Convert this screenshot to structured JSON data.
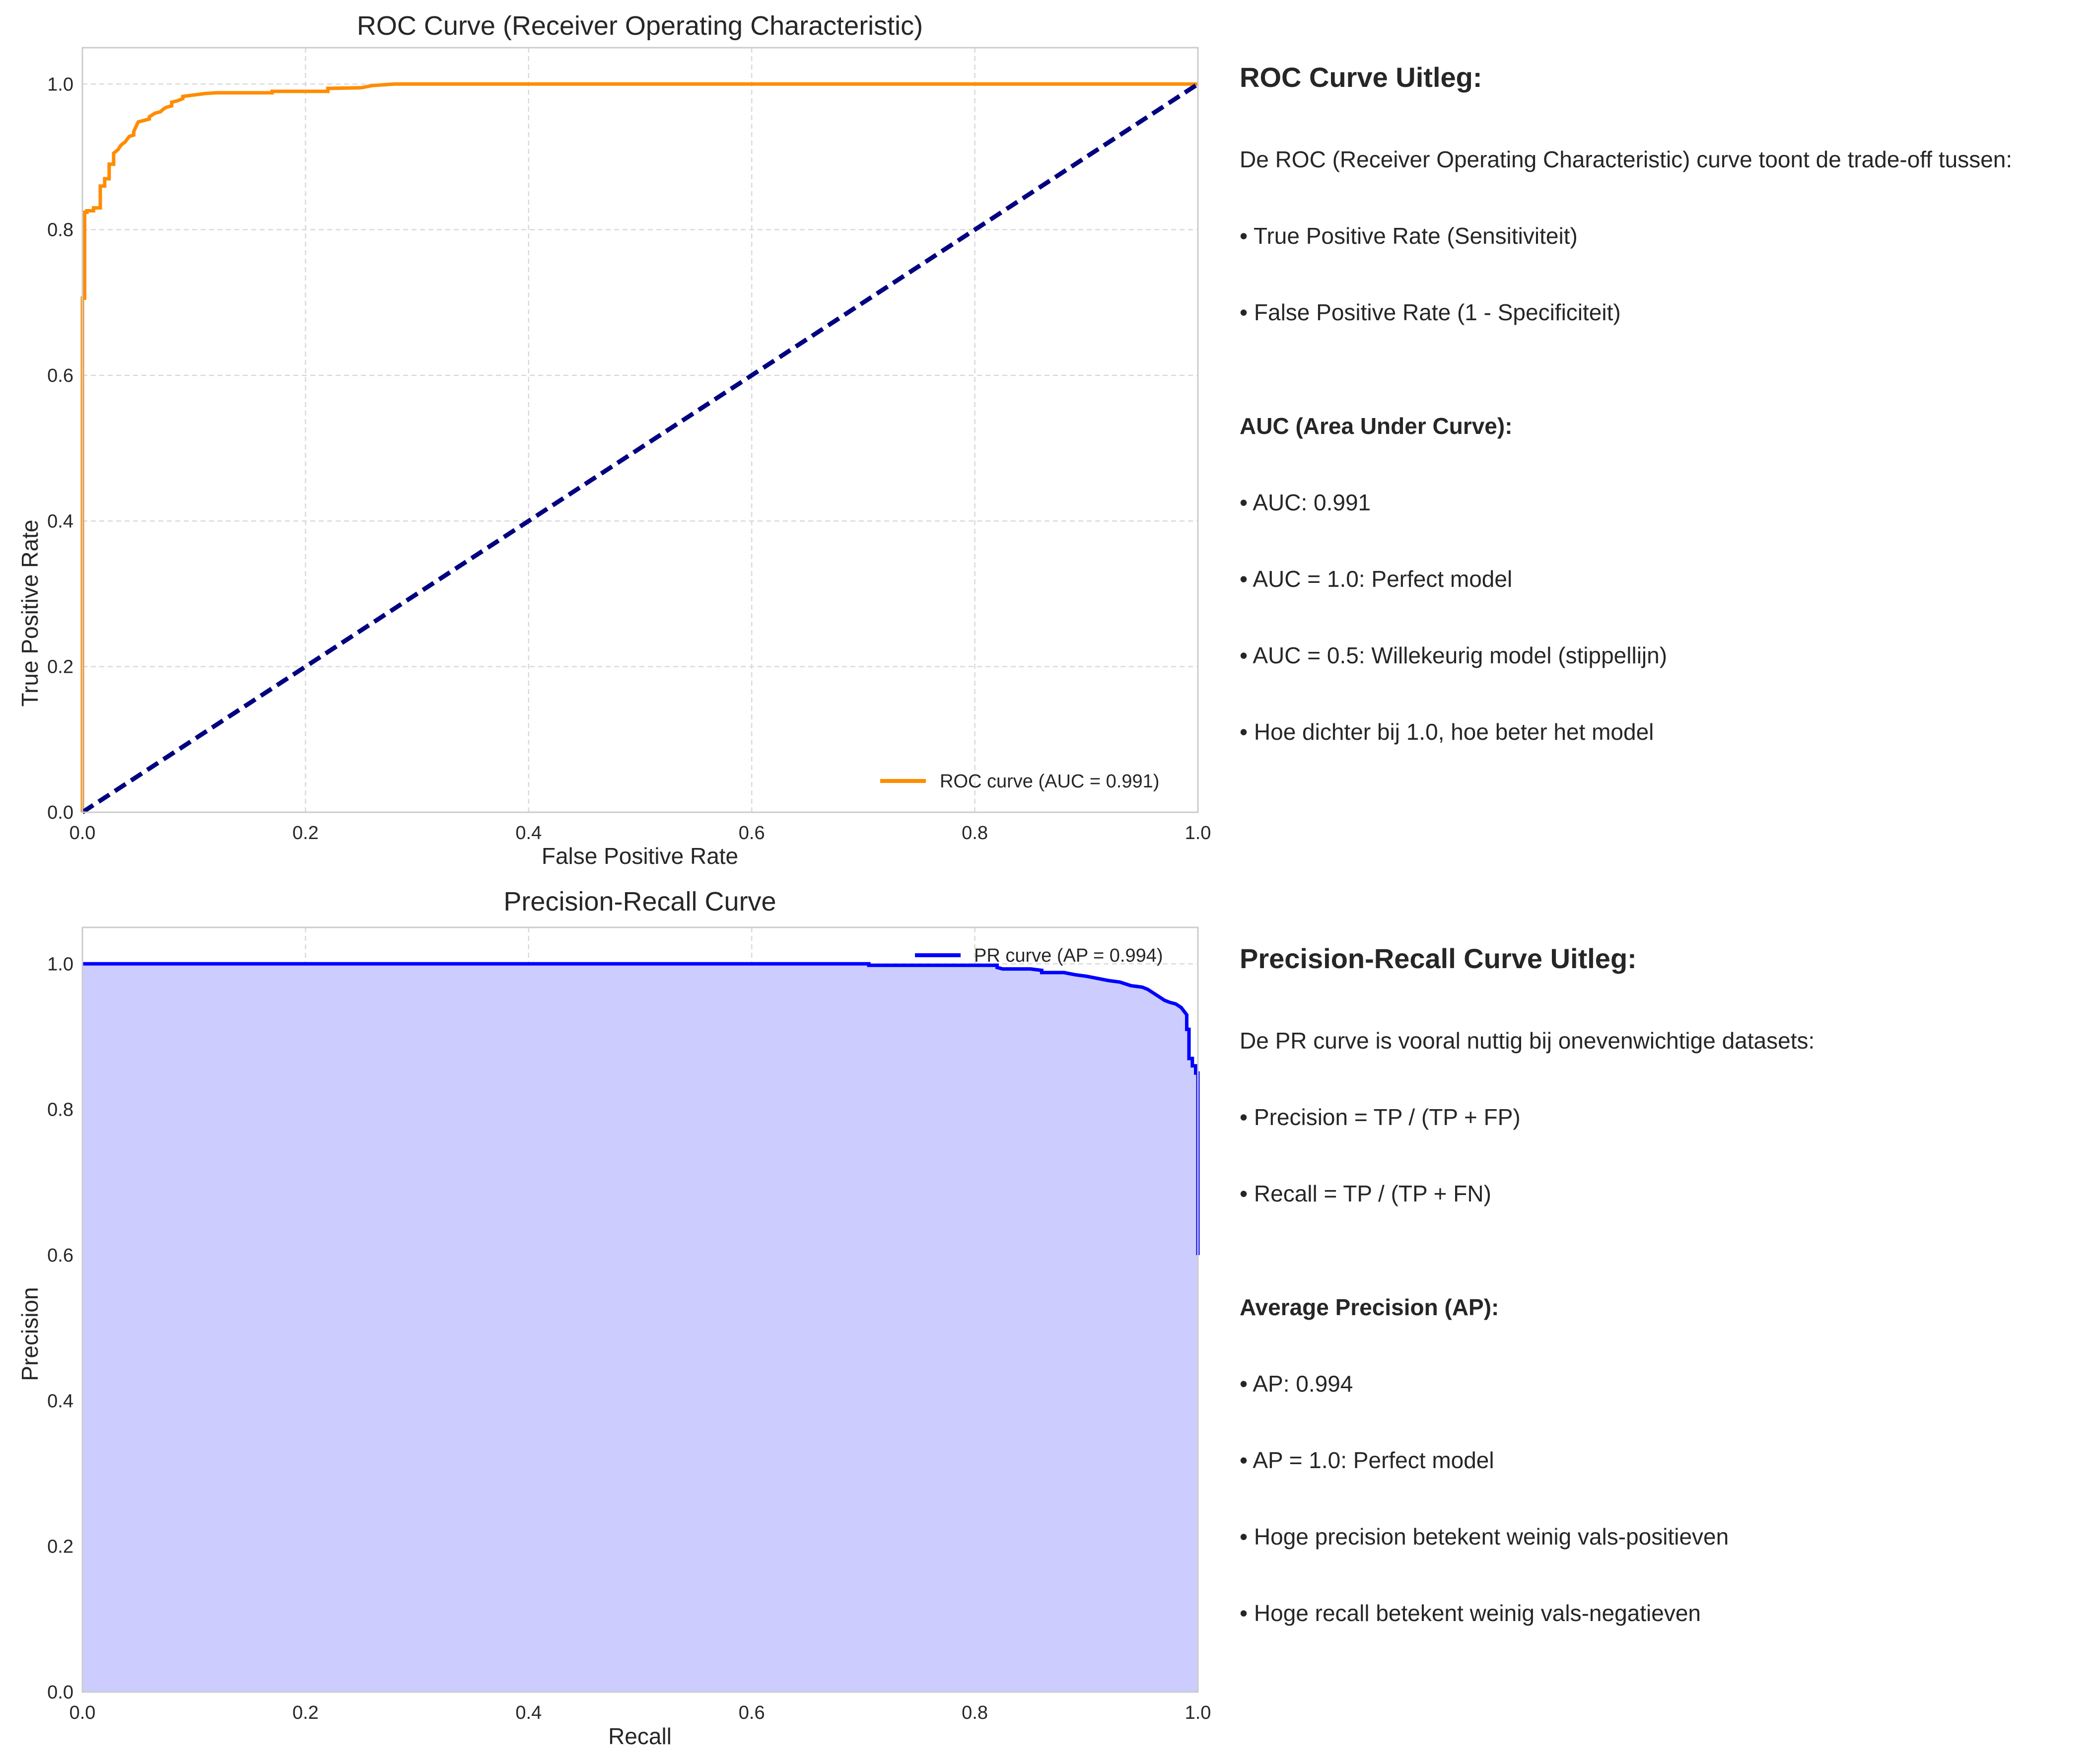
{
  "charts": {
    "roc": {
      "title": "ROC Curve (Receiver Operating Characteristic)",
      "xlabel": "False Positive Rate",
      "ylabel": "True Positive Rate",
      "legend": "ROC curve (AUC = 0.991)"
    },
    "pr": {
      "title": "Precision-Recall Curve",
      "xlabel": "Recall",
      "ylabel": "Precision",
      "legend": "PR curve (AP = 0.994)"
    }
  },
  "chart_data": [
    {
      "type": "line",
      "title": "ROC Curve (Receiver Operating Characteristic)",
      "xlabel": "False Positive Rate",
      "ylabel": "True Positive Rate",
      "xlim": [
        0.0,
        1.0
      ],
      "ylim": [
        0.0,
        1.05
      ],
      "xticks": [
        "0.0",
        "0.2",
        "0.4",
        "0.6",
        "0.8",
        "1.0"
      ],
      "yticks": [
        "0.0",
        "0.2",
        "0.4",
        "0.6",
        "0.8",
        "1.0"
      ],
      "grid": true,
      "legend_position": "lower-right",
      "colors": {
        "curve": "#ff8c00",
        "diagonal": "#000080"
      },
      "series": [
        {
          "name": "ROC curve (AUC = 0.991)",
          "style": "solid",
          "x": [
            0.0,
            0.0,
            0.002,
            0.002,
            0.004,
            0.004,
            0.01,
            0.01,
            0.016,
            0.016,
            0.02,
            0.02,
            0.024,
            0.024,
            0.028,
            0.028,
            0.032,
            0.034,
            0.036,
            0.038,
            0.04,
            0.042,
            0.046,
            0.046,
            0.05,
            0.055,
            0.06,
            0.06,
            0.065,
            0.07,
            0.072,
            0.075,
            0.08,
            0.08,
            0.085,
            0.09,
            0.09,
            0.1,
            0.11,
            0.12,
            0.17,
            0.17,
            0.22,
            0.22,
            0.25,
            0.26,
            0.28,
            1.0
          ],
          "y": [
            0.0,
            0.706,
            0.706,
            0.824,
            0.824,
            0.826,
            0.826,
            0.83,
            0.83,
            0.86,
            0.86,
            0.87,
            0.87,
            0.89,
            0.89,
            0.905,
            0.91,
            0.915,
            0.918,
            0.92,
            0.924,
            0.928,
            0.93,
            0.935,
            0.948,
            0.95,
            0.952,
            0.955,
            0.96,
            0.962,
            0.965,
            0.968,
            0.97,
            0.975,
            0.977,
            0.98,
            0.983,
            0.985,
            0.987,
            0.988,
            0.988,
            0.99,
            0.99,
            0.994,
            0.995,
            0.998,
            1.0,
            1.0
          ]
        },
        {
          "name": "",
          "style": "dashed",
          "x": [
            0.0,
            1.0
          ],
          "y": [
            0.0,
            1.0
          ]
        }
      ]
    },
    {
      "type": "area",
      "title": "Precision-Recall Curve",
      "xlabel": "Recall",
      "ylabel": "Precision",
      "xlim": [
        0.0,
        1.0
      ],
      "ylim": [
        0.0,
        1.05
      ],
      "xticks": [
        "0.0",
        "0.2",
        "0.4",
        "0.6",
        "0.8",
        "1.0"
      ],
      "yticks": [
        "0.0",
        "0.2",
        "0.4",
        "0.6",
        "0.8",
        "1.0"
      ],
      "grid": true,
      "legend_position": "top-right",
      "colors": {
        "curve": "#0000ff",
        "fill": "#ccccff"
      },
      "series": [
        {
          "name": "PR curve (AP = 0.994)",
          "x": [
            0.0,
            0.705,
            0.705,
            0.82,
            0.82,
            0.825,
            0.83,
            0.85,
            0.86,
            0.86,
            0.88,
            0.89,
            0.9,
            0.91,
            0.92,
            0.93,
            0.94,
            0.95,
            0.955,
            0.96,
            0.965,
            0.97,
            0.975,
            0.98,
            0.985,
            0.99,
            0.99,
            0.992,
            0.992,
            0.995,
            0.995,
            0.998,
            0.998,
            1.0,
            1.0
          ],
          "y": [
            1.0,
            1.0,
            0.998,
            0.998,
            0.995,
            0.993,
            0.993,
            0.993,
            0.991,
            0.988,
            0.988,
            0.985,
            0.983,
            0.98,
            0.977,
            0.975,
            0.97,
            0.968,
            0.965,
            0.96,
            0.955,
            0.95,
            0.947,
            0.945,
            0.94,
            0.93,
            0.91,
            0.91,
            0.87,
            0.87,
            0.86,
            0.86,
            0.85,
            0.85,
            0.6
          ]
        }
      ]
    }
  ],
  "panels": {
    "roc": {
      "title": "ROC Curve Uitleg:",
      "intro": "De ROC (Receiver Operating Characteristic) curve toont de trade-off tussen:",
      "bullet1": "• True Positive Rate (Sensitiviteit)",
      "bullet2": "• False Positive Rate (1 - Specificiteit)",
      "subtitle": "AUC (Area Under Curve):",
      "bullet3": "• AUC: 0.991",
      "bullet4": "• AUC = 1.0: Perfect model",
      "bullet5": "• AUC = 0.5: Willekeurig model (stippellijn)",
      "bullet6": "• Hoe dichter bij 1.0, hoe beter het model"
    },
    "pr": {
      "title": "Precision-Recall Curve Uitleg:",
      "intro": "De PR curve is vooral nuttig bij onevenwichtige datasets:",
      "bullet1": "• Precision = TP / (TP + FP)",
      "bullet2": "• Recall = TP / (TP + FN)",
      "subtitle": "Average Precision (AP):",
      "bullet3": "• AP: 0.994",
      "bullet4": "• AP = 1.0: Perfect model",
      "bullet5": "• Hoge precision betekent weinig vals-positieven",
      "bullet6": "• Hoge recall betekent weinig vals-negatieven"
    }
  }
}
